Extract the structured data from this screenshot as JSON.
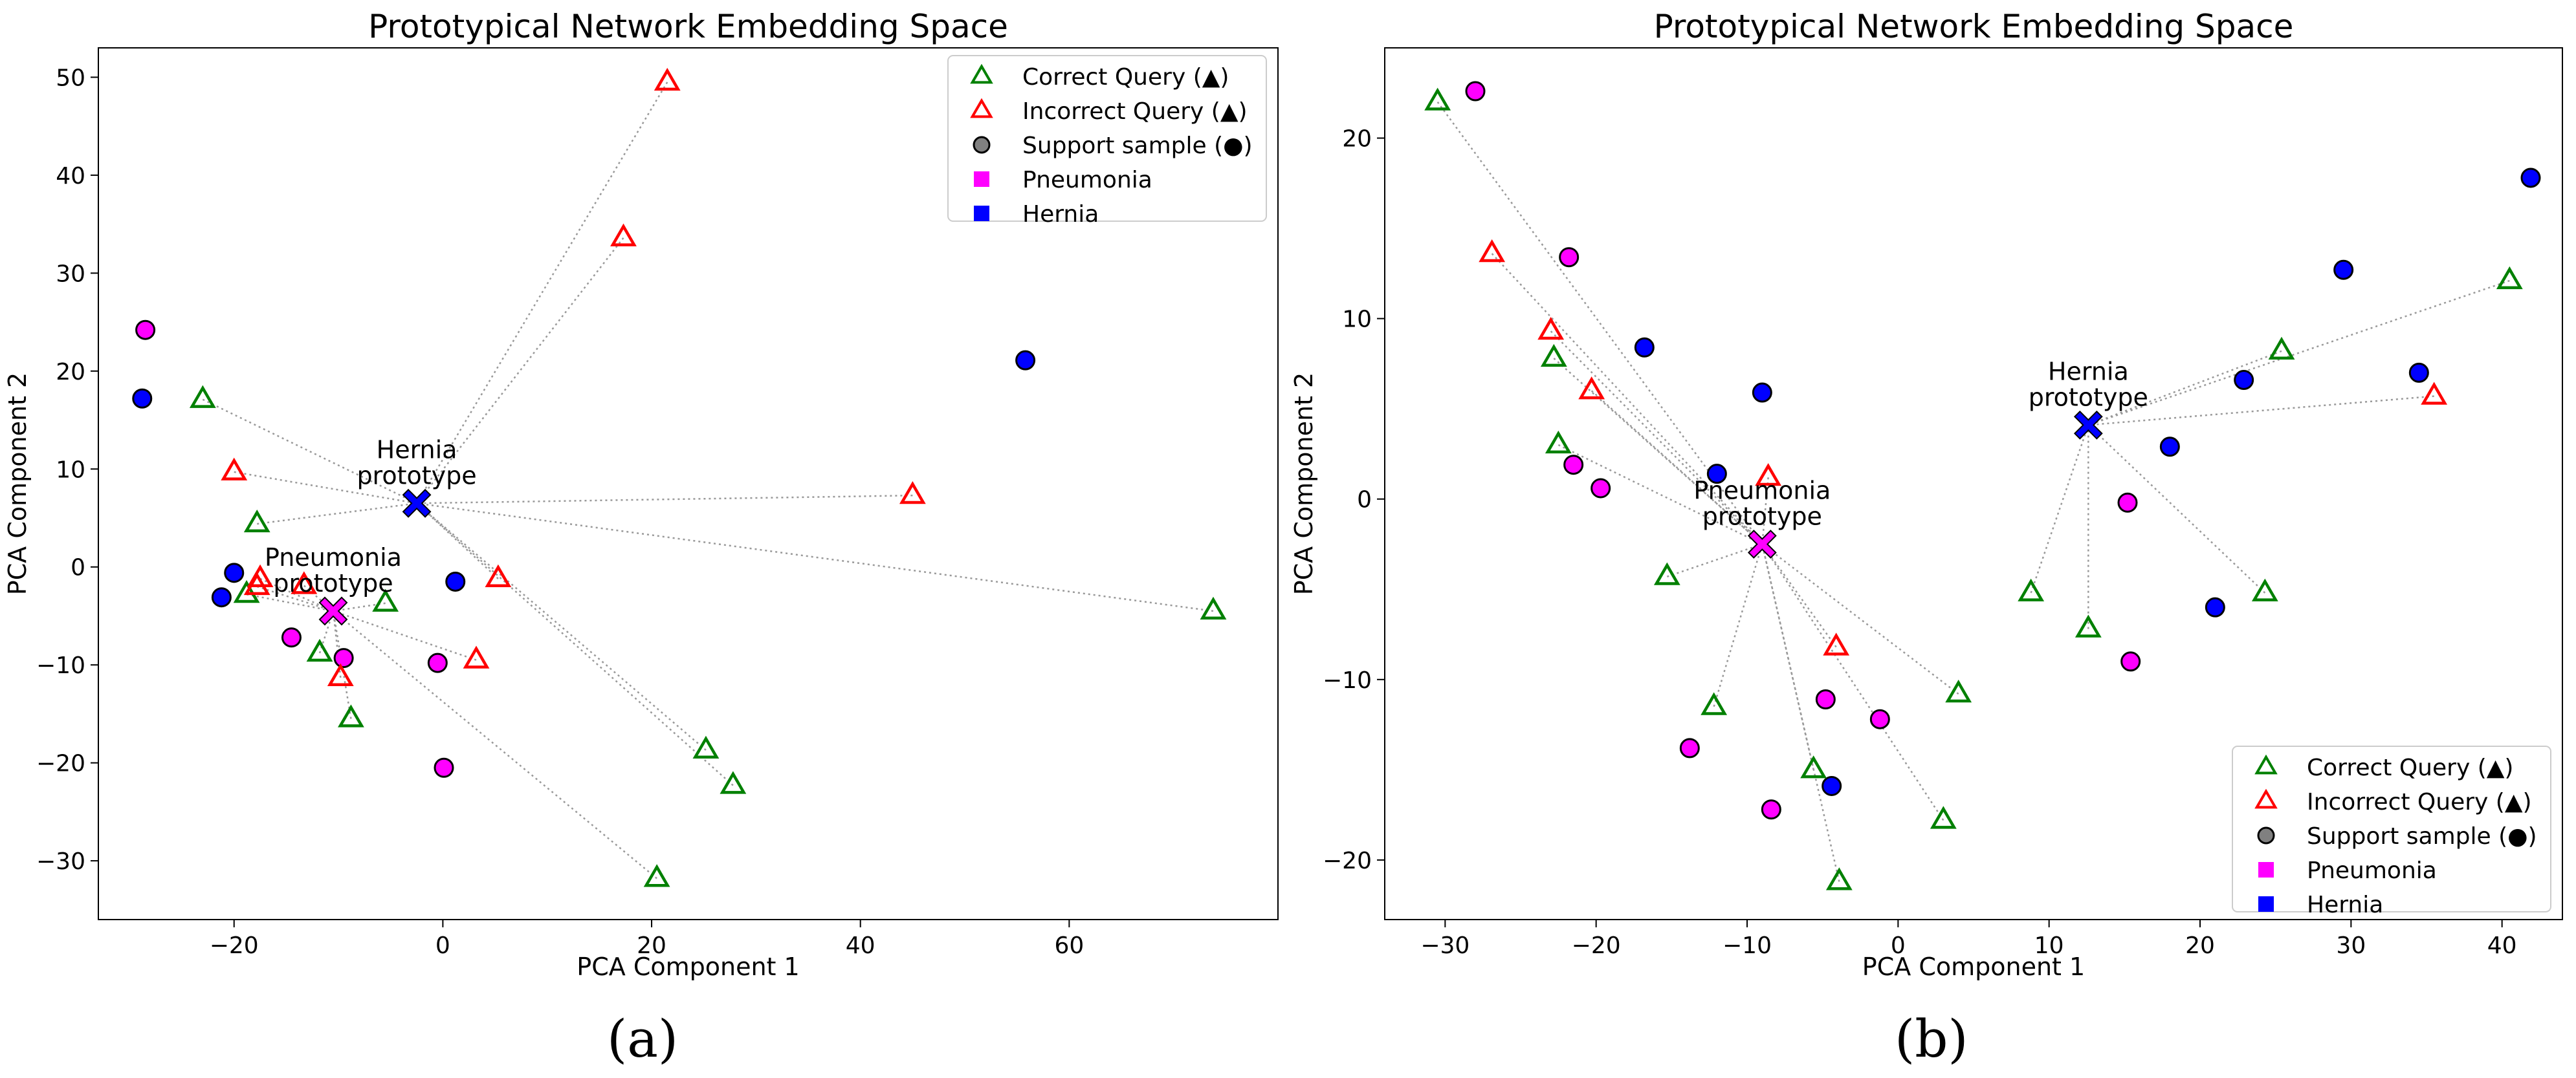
{
  "chart_data": [
    {
      "type": "scatter",
      "panel": "(a)",
      "title": "Prototypical Network Embedding Space",
      "xlabel": "PCA Component 1",
      "ylabel": "PCA Component 2",
      "xlim": [
        -33,
        80
      ],
      "ylim": [
        -36,
        53
      ],
      "xticks": [
        -20,
        0,
        20,
        40,
        60
      ],
      "yticks": [
        -30,
        -20,
        -10,
        0,
        10,
        20,
        30,
        40,
        50
      ],
      "legend_position": "top-right",
      "legend": [
        "Correct Query (▲)",
        "Incorrect Query (▲)",
        "Support sample (●)",
        "Pneumonia",
        "Hernia"
      ],
      "prototypes": [
        {
          "name": "Hernia",
          "label": [
            "Hernia",
            "prototype"
          ],
          "x": -2.5,
          "y": 6.5,
          "color": "#0000ff"
        },
        {
          "name": "Pneumonia",
          "label": [
            "Pneumonia",
            "prototype"
          ],
          "x": -10.5,
          "y": -4.5,
          "color": "#ff00ff"
        }
      ],
      "support": [
        {
          "x": -28.5,
          "y": 24.2,
          "c": "Pneumonia"
        },
        {
          "x": -14.5,
          "y": -7.2,
          "c": "Pneumonia"
        },
        {
          "x": -9.5,
          "y": -9.3,
          "c": "Pneumonia"
        },
        {
          "x": -0.5,
          "y": -9.8,
          "c": "Pneumonia"
        },
        {
          "x": 0.1,
          "y": -20.5,
          "c": "Pneumonia"
        },
        {
          "x": -28.8,
          "y": 17.2,
          "c": "Hernia"
        },
        {
          "x": -20.0,
          "y": -0.6,
          "c": "Hernia"
        },
        {
          "x": -21.2,
          "y": -3.1,
          "c": "Hernia"
        },
        {
          "x": 1.2,
          "y": -1.5,
          "c": "Hernia"
        },
        {
          "x": 55.8,
          "y": 21.1,
          "c": "Hernia"
        }
      ],
      "queries": [
        {
          "x": -23.0,
          "y": 17.1,
          "ok": true,
          "p": "Hernia"
        },
        {
          "x": -17.8,
          "y": 4.4,
          "ok": true,
          "p": "Hernia"
        },
        {
          "x": -18.8,
          "y": -2.8,
          "ok": true,
          "p": "Pneumonia"
        },
        {
          "x": -11.8,
          "y": -8.8,
          "ok": true,
          "p": "Pneumonia"
        },
        {
          "x": -8.8,
          "y": -15.5,
          "ok": true,
          "p": "Pneumonia"
        },
        {
          "x": -5.5,
          "y": -3.7,
          "ok": true,
          "p": "Pneumonia"
        },
        {
          "x": 25.2,
          "y": -18.7,
          "ok": true,
          "p": "Hernia"
        },
        {
          "x": 27.8,
          "y": -22.3,
          "ok": true,
          "p": "Hernia"
        },
        {
          "x": 20.5,
          "y": -31.8,
          "ok": true,
          "p": "Pneumonia"
        },
        {
          "x": 73.8,
          "y": -4.5,
          "ok": true,
          "p": "Hernia"
        },
        {
          "x": 21.5,
          "y": 49.5,
          "ok": false,
          "p": "Hernia"
        },
        {
          "x": 17.3,
          "y": 33.6,
          "ok": false,
          "p": "Hernia"
        },
        {
          "x": -20.0,
          "y": 9.7,
          "ok": false,
          "p": "Hernia"
        },
        {
          "x": 45.0,
          "y": 7.3,
          "ok": false,
          "p": "Hernia"
        },
        {
          "x": -17.5,
          "y": -1.2,
          "ok": false,
          "p": "Pneumonia"
        },
        {
          "x": -17.8,
          "y": -2.0,
          "ok": false,
          "p": "Pneumonia"
        },
        {
          "x": -13.3,
          "y": -1.9,
          "ok": false,
          "p": "Pneumonia"
        },
        {
          "x": -9.8,
          "y": -11.3,
          "ok": false,
          "p": "Pneumonia"
        },
        {
          "x": 5.3,
          "y": -1.2,
          "ok": false,
          "p": "Hernia"
        },
        {
          "x": 3.2,
          "y": -9.5,
          "ok": false,
          "p": "Pneumonia"
        }
      ]
    },
    {
      "type": "scatter",
      "panel": "(b)",
      "title": "Prototypical Network Embedding Space",
      "xlabel": "PCA Component 1",
      "ylabel": "PCA Component 2",
      "xlim": [
        -34,
        44
      ],
      "ylim": [
        -23.3,
        25
      ],
      "xticks": [
        -30,
        -20,
        -10,
        0,
        10,
        20,
        30,
        40
      ],
      "yticks": [
        -20,
        -10,
        0,
        10,
        20
      ],
      "legend_position": "bottom-right",
      "legend": [
        "Correct Query (▲)",
        "Incorrect Query (▲)",
        "Support sample (●)",
        "Pneumonia",
        "Hernia"
      ],
      "prototypes": [
        {
          "name": "Hernia",
          "label": [
            "Hernia",
            "prototype"
          ],
          "x": 12.6,
          "y": 4.1,
          "color": "#0000ff"
        },
        {
          "name": "Pneumonia",
          "label": [
            "Pneumonia",
            "prototype"
          ],
          "x": -9.0,
          "y": -2.5,
          "color": "#ff00ff"
        }
      ],
      "support": [
        {
          "x": -28.0,
          "y": 22.6,
          "c": "Pneumonia"
        },
        {
          "x": -21.8,
          "y": 13.4,
          "c": "Pneumonia"
        },
        {
          "x": -21.5,
          "y": 1.9,
          "c": "Pneumonia"
        },
        {
          "x": -19.7,
          "y": 0.6,
          "c": "Pneumonia"
        },
        {
          "x": -13.8,
          "y": -13.8,
          "c": "Pneumonia"
        },
        {
          "x": -8.4,
          "y": -17.2,
          "c": "Pneumonia"
        },
        {
          "x": -4.8,
          "y": -11.1,
          "c": "Pneumonia"
        },
        {
          "x": -1.2,
          "y": -12.2,
          "c": "Pneumonia"
        },
        {
          "x": 15.2,
          "y": -0.2,
          "c": "Pneumonia"
        },
        {
          "x": 15.4,
          "y": -9.0,
          "c": "Pneumonia"
        },
        {
          "x": -16.8,
          "y": 8.4,
          "c": "Hernia"
        },
        {
          "x": -9.0,
          "y": 5.9,
          "c": "Hernia"
        },
        {
          "x": -4.4,
          "y": -15.9,
          "c": "Hernia"
        },
        {
          "x": 18.0,
          "y": 2.9,
          "c": "Hernia"
        },
        {
          "x": 21.0,
          "y": -6.0,
          "c": "Hernia"
        },
        {
          "x": 22.9,
          "y": 6.6,
          "c": "Hernia"
        },
        {
          "x": 29.5,
          "y": 12.7,
          "c": "Hernia"
        },
        {
          "x": 34.5,
          "y": 7.0,
          "c": "Hernia"
        },
        {
          "x": 41.9,
          "y": 17.8,
          "c": "Hernia"
        },
        {
          "x": -12.0,
          "y": 1.4,
          "c": "Hernia"
        }
      ],
      "queries": [
        {
          "x": -30.5,
          "y": 22.0,
          "ok": true,
          "p": "Pneumonia"
        },
        {
          "x": -22.8,
          "y": 7.8,
          "ok": true,
          "p": "Pneumonia"
        },
        {
          "x": -22.5,
          "y": 3.0,
          "ok": true,
          "p": "Pneumonia"
        },
        {
          "x": -15.3,
          "y": -4.3,
          "ok": true,
          "p": "Pneumonia"
        },
        {
          "x": -12.2,
          "y": -11.5,
          "ok": true,
          "p": "Pneumonia"
        },
        {
          "x": -5.6,
          "y": -15.0,
          "ok": true,
          "p": "Pneumonia"
        },
        {
          "x": -3.9,
          "y": -21.2,
          "ok": true,
          "p": "Pneumonia"
        },
        {
          "x": 3.0,
          "y": -17.8,
          "ok": true,
          "p": "Pneumonia"
        },
        {
          "x": 4.0,
          "y": -10.8,
          "ok": true,
          "p": "Pneumonia"
        },
        {
          "x": 8.8,
          "y": -5.2,
          "ok": true,
          "p": "Hernia"
        },
        {
          "x": 12.6,
          "y": -7.2,
          "ok": true,
          "p": "Hernia"
        },
        {
          "x": 24.3,
          "y": -5.2,
          "ok": true,
          "p": "Hernia"
        },
        {
          "x": 25.4,
          "y": 8.2,
          "ok": true,
          "p": "Hernia"
        },
        {
          "x": 40.5,
          "y": 12.1,
          "ok": true,
          "p": "Hernia"
        },
        {
          "x": -26.9,
          "y": 13.6,
          "ok": false,
          "p": "Pneumonia"
        },
        {
          "x": -23.0,
          "y": 9.3,
          "ok": false,
          "p": "Pneumonia"
        },
        {
          "x": -20.3,
          "y": 6.0,
          "ok": false,
          "p": "Pneumonia"
        },
        {
          "x": -8.6,
          "y": 1.2,
          "ok": false,
          "p": "Pneumonia"
        },
        {
          "x": -4.1,
          "y": -8.2,
          "ok": false,
          "p": "Pneumonia"
        },
        {
          "x": 35.5,
          "y": 5.7,
          "ok": false,
          "p": "Hernia"
        }
      ]
    }
  ],
  "captions": {
    "a": "(a)",
    "b": "(b)"
  },
  "colors": {
    "correct": "#008000",
    "incorrect": "#ff0000",
    "support_legend": "#808080",
    "pneumonia": "#ff00ff",
    "hernia": "#0000ff",
    "connector": "#999999"
  }
}
